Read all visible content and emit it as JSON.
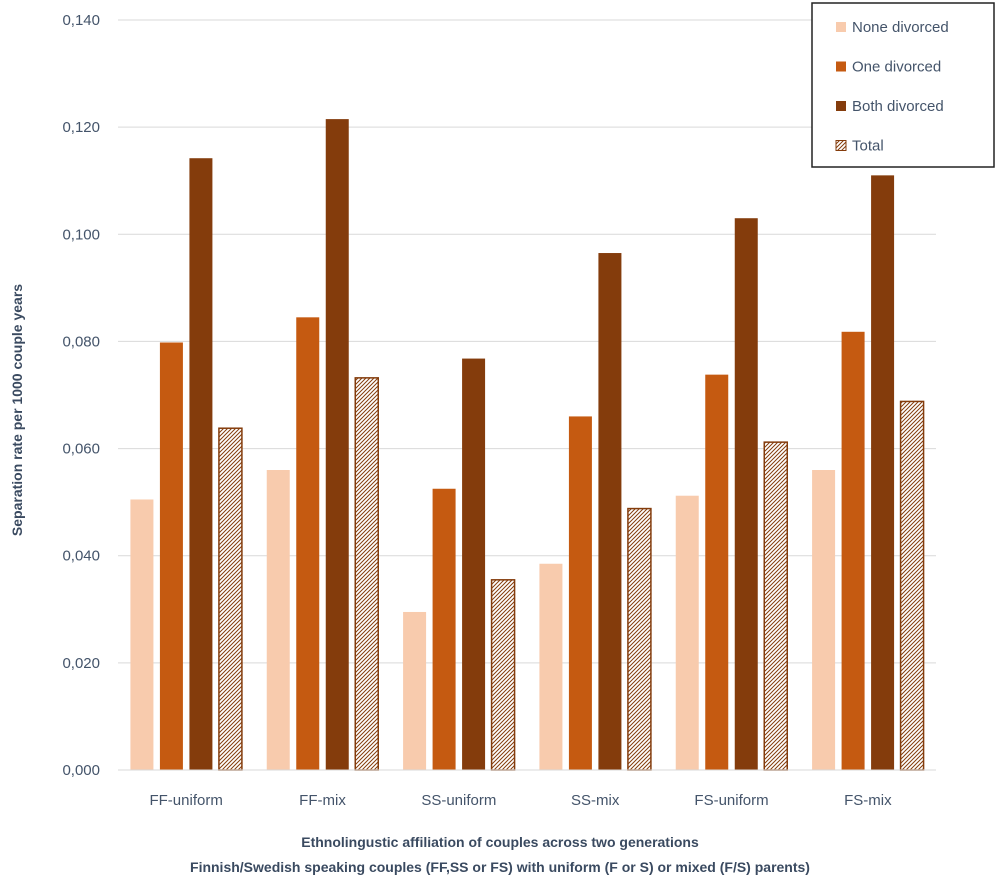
{
  "chart_data": {
    "type": "bar",
    "title": "",
    "ylabel": "Separation rate per  1000 couple years",
    "xlabel_lines": [
      "Ethnolingustic affiliation of couples across two generations",
      "Finnish/Swedish speaking couples (FF,SS or FS) with uniform (F or S) or mixed (F/S) parents)"
    ],
    "ylim": [
      0,
      0.14
    ],
    "y_ticks": [
      0,
      0.02,
      0.04,
      0.06,
      0.08,
      0.1,
      0.12,
      0.14
    ],
    "y_tick_labels": [
      "0,000",
      "0,020",
      "0,040",
      "0,060",
      "0,080",
      "0,100",
      "0,120",
      "0,140"
    ],
    "grid": true,
    "legend_position": "top-right",
    "categories": [
      "FF-uniform",
      "FF-mix",
      "SS-uniform",
      "SS-mix",
      "FS-uniform",
      "FS-mix"
    ],
    "series": [
      {
        "name": "None divorced",
        "color": "#f8cbad",
        "pattern": false,
        "values": [
          0.0505,
          0.056,
          0.0295,
          0.0385,
          0.0512,
          0.056
        ]
      },
      {
        "name": "One divorced",
        "color": "#c55a11",
        "pattern": false,
        "values": [
          0.0798,
          0.0845,
          0.0525,
          0.066,
          0.0738,
          0.0818
        ]
      },
      {
        "name": "Both divorced",
        "color": "#843c0c",
        "pattern": false,
        "values": [
          0.1142,
          0.1215,
          0.0768,
          0.0965,
          0.103,
          0.111
        ]
      },
      {
        "name": "Total",
        "color": "#843c0c",
        "pattern": true,
        "values": [
          0.0638,
          0.0732,
          0.0355,
          0.0488,
          0.0612,
          0.0688
        ]
      }
    ]
  }
}
